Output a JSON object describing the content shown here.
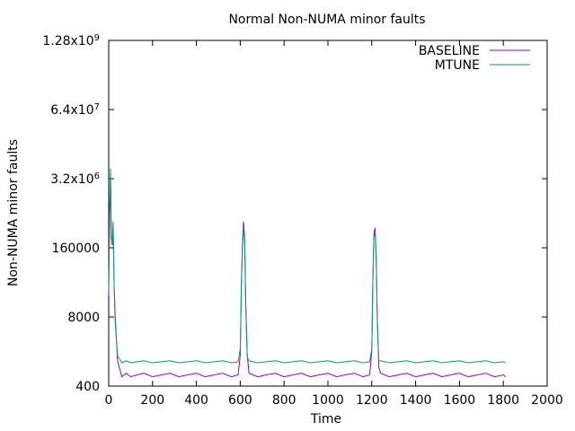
{
  "chart_data": {
    "type": "line",
    "title": "Normal Non-NUMA minor faults",
    "xlabel": "Time",
    "ylabel": "Non-NUMA minor faults",
    "xlim": [
      0,
      2000
    ],
    "ylim": [
      400,
      1280000000
    ],
    "yscale": "log",
    "grid": false,
    "legend_position": "top-right",
    "x_ticks": [
      "0",
      "200",
      "400",
      "600",
      "800",
      "1000",
      "1200",
      "1400",
      "1600",
      "1800",
      "2000"
    ],
    "x_tick_values": [
      0,
      200,
      400,
      600,
      800,
      1000,
      1200,
      1400,
      1600,
      1800,
      2000
    ],
    "y_ticks": [
      {
        "value": 400,
        "base": "400",
        "exp": ""
      },
      {
        "value": 8000,
        "base": "8000",
        "exp": ""
      },
      {
        "value": 160000,
        "base": "160000",
        "exp": ""
      },
      {
        "value": 3200000,
        "base": "3.2x10",
        "exp": "6"
      },
      {
        "value": 64000000,
        "base": "6.4x10",
        "exp": "7"
      },
      {
        "value": 1280000000,
        "base": "1.28x10",
        "exp": "9"
      }
    ],
    "series": [
      {
        "name": "BASELINE",
        "color": "#9400d3",
        "x": [
          0,
          4,
          8,
          12,
          16,
          20,
          25,
          30,
          40,
          60,
          80,
          100,
          130,
          160,
          200,
          240,
          280,
          320,
          360,
          400,
          440,
          480,
          520,
          560,
          590,
          600,
          605,
          610,
          615,
          620,
          625,
          632,
          640,
          680,
          720,
          760,
          800,
          840,
          880,
          920,
          960,
          1000,
          1040,
          1080,
          1120,
          1160,
          1190,
          1200,
          1205,
          1210,
          1215,
          1220,
          1225,
          1232,
          1240,
          1280,
          1320,
          1360,
          1400,
          1440,
          1480,
          1520,
          1560,
          1600,
          1640,
          1680,
          1720,
          1760,
          1800,
          1810
        ],
        "y": [
          20000,
          600000,
          3000000,
          250000,
          180000,
          400000,
          30000,
          8000,
          1200,
          600,
          700,
          600,
          650,
          700,
          600,
          650,
          700,
          600,
          650,
          700,
          600,
          650,
          700,
          600,
          650,
          1500,
          30000,
          180000,
          500000,
          250000,
          15000,
          1500,
          700,
          600,
          650,
          700,
          600,
          650,
          700,
          600,
          650,
          700,
          600,
          650,
          700,
          600,
          650,
          1800,
          40000,
          300000,
          380000,
          120000,
          8000,
          900,
          700,
          600,
          650,
          700,
          600,
          650,
          700,
          600,
          650,
          700,
          600,
          650,
          700,
          600,
          650,
          600
        ]
      },
      {
        "name": "MTUNE",
        "color": "#009e73",
        "x": [
          0,
          4,
          8,
          12,
          16,
          20,
          25,
          30,
          40,
          60,
          80,
          100,
          130,
          160,
          200,
          240,
          280,
          320,
          360,
          400,
          440,
          480,
          520,
          560,
          590,
          600,
          605,
          610,
          615,
          620,
          625,
          632,
          640,
          680,
          720,
          760,
          800,
          840,
          880,
          920,
          960,
          1000,
          1040,
          1080,
          1120,
          1160,
          1190,
          1200,
          1205,
          1210,
          1215,
          1220,
          1225,
          1232,
          1240,
          1280,
          1320,
          1360,
          1400,
          1440,
          1480,
          1520,
          1560,
          1600,
          1640,
          1680,
          1720,
          1760,
          1800,
          1810
        ],
        "y": [
          25000,
          800000,
          5000000,
          300000,
          200000,
          500000,
          25000,
          6000,
          1500,
          1100,
          1200,
          1100,
          1150,
          1200,
          1100,
          1150,
          1200,
          1100,
          1150,
          1200,
          1100,
          1150,
          1200,
          1100,
          1150,
          2000,
          25000,
          150000,
          380000,
          200000,
          12000,
          1400,
          1200,
          1100,
          1150,
          1200,
          1100,
          1150,
          1200,
          1100,
          1150,
          1200,
          1100,
          1150,
          1200,
          1100,
          1150,
          2000,
          35000,
          250000,
          320000,
          100000,
          7000,
          1200,
          1200,
          1100,
          1150,
          1200,
          1100,
          1150,
          1200,
          1100,
          1150,
          1200,
          1100,
          1150,
          1200,
          1100,
          1150,
          1100
        ]
      }
    ]
  }
}
